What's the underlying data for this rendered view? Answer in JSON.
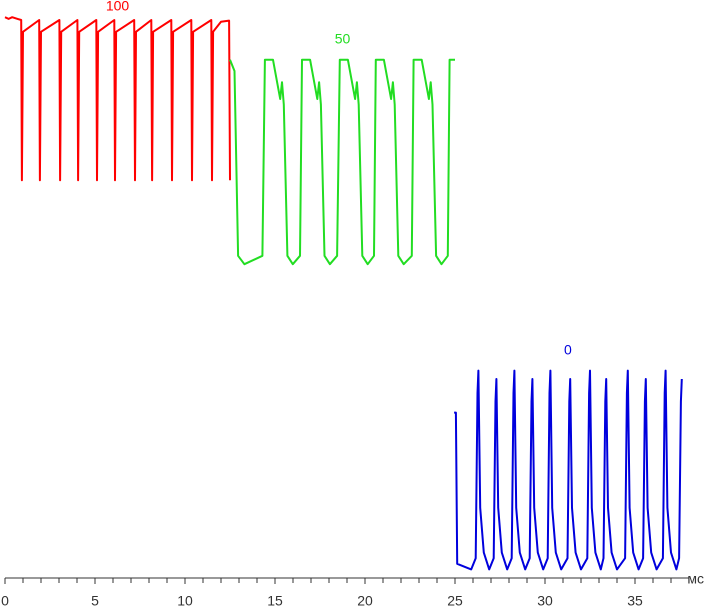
{
  "chart_data": {
    "type": "line",
    "xlabel": "мс",
    "xlim": [
      0,
      38
    ],
    "xticks": [
      0,
      5,
      10,
      15,
      20,
      25,
      30,
      35
    ],
    "xminorticks": [
      1,
      2,
      3,
      4,
      6,
      7,
      8,
      9,
      11,
      12,
      13,
      14,
      16,
      17,
      18,
      19,
      21,
      22,
      23,
      24,
      26,
      27,
      28,
      29,
      31,
      32,
      33,
      34,
      36,
      37
    ],
    "ylim": [
      0,
      100
    ],
    "series": [
      {
        "name": "100",
        "color": "#ff0000",
        "x": [
          0,
          0.2,
          0.4,
          0.7,
          0.9,
          0.94,
          1.0,
          1.9,
          1.94,
          2.0,
          3.02,
          3.06,
          3.12,
          4.02,
          4.06,
          4.12,
          5.07,
          5.11,
          5.17,
          6.07,
          6.11,
          6.17,
          7.18,
          7.22,
          7.28,
          8.13,
          8.17,
          8.23,
          9.24,
          9.28,
          9.34,
          10.35,
          10.39,
          10.45,
          11.46,
          11.5,
          11.56,
          12.0,
          12.45,
          12.5
        ],
        "values": [
          99.6,
          99.3,
          99.6,
          99.3,
          99.1,
          70.5,
          97,
          99.1,
          70.5,
          97,
          99.1,
          70.5,
          97,
          99.1,
          70.5,
          97,
          99.1,
          70.5,
          97,
          99.1,
          70.5,
          97,
          99.1,
          70.5,
          97,
          99.1,
          70.5,
          97,
          99.1,
          70.5,
          97,
          99.1,
          70.5,
          97,
          99.1,
          70.5,
          97,
          98.8,
          99,
          70.5
        ]
      },
      {
        "name": "50",
        "color": "#22dd22",
        "x": [
          12.5,
          12.75,
          12.95,
          13.3,
          14.3,
          14.44,
          14.89,
          15.29,
          15.39,
          15.49,
          15.69,
          15.99,
          16.39,
          16.5,
          16.95,
          17.35,
          17.45,
          17.55,
          17.75,
          18.05,
          18.45,
          18.6,
          19.05,
          19.45,
          19.55,
          19.65,
          19.85,
          20.15,
          20.5,
          20.6,
          21.05,
          21.45,
          21.55,
          21.65,
          21.85,
          22.15,
          22.6,
          22.7,
          23.15,
          23.55,
          23.65,
          23.75,
          23.95,
          24.25,
          24.6,
          24.7,
          25.0
        ],
        "values": [
          92,
          90,
          57,
          55.5,
          57,
          92,
          92,
          85,
          88,
          84,
          57,
          55.5,
          57,
          92,
          92,
          85,
          88,
          84,
          57,
          55.5,
          57,
          92,
          92,
          85,
          88,
          84,
          57,
          55.5,
          57,
          92,
          92,
          85,
          88,
          84,
          57,
          55.5,
          57,
          92,
          92,
          85,
          88,
          84,
          57,
          55.5,
          57,
          92,
          92
        ]
      },
      {
        "name": "0",
        "color": "#0000dd",
        "x": [
          24.95,
          25.05,
          25.12,
          25.9,
          26.15,
          26.25,
          26.3,
          26.4,
          26.6,
          26.9,
          27.15,
          27.25,
          27.3,
          27.4,
          27.6,
          27.9,
          28.15,
          28.25,
          28.3,
          28.4,
          28.6,
          28.9,
          29.15,
          29.25,
          29.3,
          29.4,
          29.6,
          29.9,
          30.15,
          30.25,
          30.3,
          30.4,
          30.6,
          30.9,
          31.25,
          31.35,
          31.4,
          31.5,
          31.7,
          32.0,
          32.35,
          32.45,
          32.5,
          32.6,
          32.8,
          33.1,
          33.25,
          33.35,
          33.4,
          33.5,
          33.7,
          34.0,
          34.45,
          34.55,
          34.6,
          34.7,
          34.9,
          35.2,
          35.45,
          35.55,
          35.6,
          35.7,
          35.9,
          36.2,
          36.55,
          36.65,
          36.7,
          36.8,
          37.0,
          37.3,
          37.45,
          37.55,
          37.6
        ],
        "values": [
          29,
          29,
          2,
          1,
          3,
          32.5,
          36.5,
          12,
          4,
          1,
          3,
          31,
          35,
          12,
          4,
          1,
          3,
          32.5,
          36.5,
          12,
          4,
          1,
          3,
          31,
          35,
          12,
          4,
          1,
          3,
          32.5,
          36.5,
          12,
          4,
          1,
          3,
          31,
          35,
          12,
          4,
          1,
          3,
          32.5,
          36.5,
          12,
          4,
          1,
          3,
          31,
          35,
          12,
          4,
          1,
          3,
          32.5,
          36.5,
          12,
          4,
          1,
          3,
          31,
          35,
          12,
          4,
          1,
          3,
          32.5,
          36.5,
          12,
          4,
          1,
          3,
          31,
          35
        ]
      }
    ]
  }
}
